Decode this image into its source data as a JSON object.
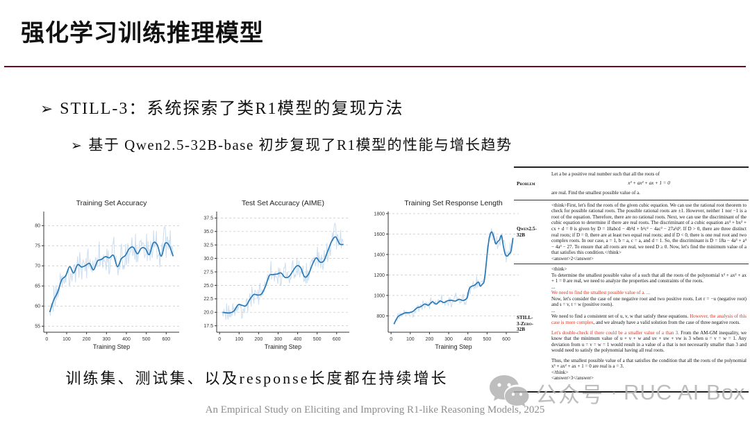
{
  "slide": {
    "title": "强化学习训练推理模型",
    "accent_color": "#b00d3e",
    "bullet_glyph": "➢",
    "bullet1": "STILL-3：系统探索了类R1模型的复现方法",
    "bullet2": "基于 Qwen2.5-32B-base 初步复现了R1模型的性能与增长趋势",
    "caption": "训练集、测试集、以及response长度都在持续增长",
    "footer": "An Empirical Study on Eliciting and Improving R1-like Reasoning Models, 2025"
  },
  "watermark": {
    "icon": "wechat-icon",
    "text1": "公众号",
    "separator": "·",
    "text2": "RUC AI Box",
    "color": "#b3b3b3"
  },
  "chart_data": [
    {
      "type": "line",
      "title": "Training Set Accuracy",
      "xlabel": "Training Step",
      "xlim": [
        -15,
        665
      ],
      "ylim": [
        53.5,
        83.5
      ],
      "xticks": [
        0,
        100,
        200,
        300,
        400,
        500,
        600
      ],
      "yticks": [
        55,
        60,
        65,
        70,
        75,
        80
      ],
      "ytick_labels": [
        "55",
        "60",
        "65",
        "70",
        "75",
        "80"
      ],
      "grid": "horizontal-dashed",
      "line_color": "#2878b5",
      "band_color": "#aecbe9",
      "margin_left": 31,
      "x": [
        15,
        35,
        55,
        75,
        95,
        115,
        135,
        155,
        175,
        195,
        215,
        235,
        255,
        275,
        295,
        315,
        335,
        355,
        375,
        395,
        415,
        435,
        455,
        475,
        495,
        515,
        535,
        555,
        575,
        595,
        615,
        635
      ],
      "y": [
        58.5,
        61.5,
        63.5,
        66.5,
        67.5,
        69.8,
        68.2,
        70.3,
        69.7,
        70.1,
        70.6,
        69.0,
        71.2,
        71.6,
        72.3,
        72.0,
        72.6,
        69.8,
        71.8,
        72.6,
        74.3,
        74.6,
        73.0,
        74.4,
        74.3,
        72.8,
        75.7,
        75.2,
        72.4,
        75.6,
        75.0,
        72.4
      ],
      "noise_amp": 3.6,
      "noise_growth": 0.2
    },
    {
      "type": "line",
      "title": "Test Set Accuracy (AIME)",
      "xlabel": "Training Step",
      "xlim": [
        -15,
        665
      ],
      "ylim": [
        16.3,
        38.7
      ],
      "xticks": [
        0,
        100,
        200,
        300,
        400,
        500,
        600
      ],
      "yticks": [
        17.5,
        20.0,
        22.5,
        25.0,
        27.5,
        30.0,
        32.5,
        35.0,
        37.5
      ],
      "ytick_labels": [
        "17.5",
        "20.0",
        "22.5",
        "25.0",
        "27.5",
        "30.0",
        "32.5",
        "35.0",
        "37.5"
      ],
      "grid": "horizontal-dashed",
      "line_color": "#2878b5",
      "band_color": "#aecbe9",
      "margin_left": 35,
      "x": [
        15,
        35,
        55,
        75,
        95,
        115,
        135,
        155,
        175,
        195,
        215,
        235,
        255,
        275,
        295,
        315,
        335,
        355,
        375,
        395,
        415,
        435,
        455,
        475,
        495,
        515,
        535,
        555,
        575,
        595,
        615,
        635
      ],
      "y": [
        20.0,
        19.9,
        19.9,
        20.3,
        21.4,
        21.3,
        21.2,
        22.4,
        23.3,
        23.2,
        23.4,
        24.8,
        26.8,
        27.0,
        27.1,
        27.3,
        26.5,
        26.6,
        27.6,
        28.6,
        28.3,
        26.6,
        27.0,
        28.8,
        30.1,
        29.3,
        29.6,
        31.4,
        33.2,
        34.0,
        32.7,
        32.6
      ],
      "noise_amp": 1.9,
      "noise_growth": 0.3
    },
    {
      "type": "line",
      "title": "Training Set Response Length",
      "xlabel": "Training Step",
      "xlim": [
        -15,
        665
      ],
      "ylim": [
        640,
        1820
      ],
      "xticks": [
        0,
        100,
        200,
        300,
        400,
        500,
        600
      ],
      "yticks": [
        800,
        1000,
        1200,
        1400,
        1600,
        1800
      ],
      "ytick_labels": [
        "800",
        "1000",
        "1200",
        "1400",
        "1600",
        "1800"
      ],
      "grid": "horizontal-dashed",
      "line_color": "#2878b5",
      "band_color": "#aecbe9",
      "margin_left": 38,
      "x": [
        15,
        35,
        55,
        75,
        95,
        115,
        135,
        155,
        175,
        195,
        215,
        235,
        255,
        275,
        295,
        315,
        335,
        355,
        375,
        395,
        405,
        415,
        435,
        455,
        465,
        475,
        485,
        495,
        505,
        515,
        525,
        535,
        545,
        555,
        565,
        575,
        585,
        595,
        605,
        615,
        625,
        635
      ],
      "y": [
        720,
        790,
        815,
        830,
        832,
        845,
        878,
        890,
        915,
        905,
        938,
        915,
        945,
        930,
        948,
        952,
        945,
        962,
        950,
        975,
        1050,
        1085,
        1100,
        1130,
        1090,
        1110,
        1140,
        1300,
        1480,
        1590,
        1620,
        1570,
        1505,
        1525,
        1545,
        1585,
        1480,
        1400,
        1385,
        1405,
        1435,
        1560
      ],
      "noise_amp": 38,
      "noise_growth": 1.3
    }
  ],
  "table": {
    "rows": [
      {
        "row_class": "row-problem",
        "label_lines": [
          "Problem"
        ],
        "paragraphs": [
          {
            "runs": [
              {
                "t": "Let a be a positive real number such that all the roots of"
              }
            ]
          },
          {
            "center": true,
            "italic": true,
            "runs": [
              {
                "t": "x³ + ax² + ax + 1 = 0"
              }
            ]
          },
          {
            "runs": [
              {
                "t": "are real. Find the smallest possible value of a."
              }
            ]
          }
        ]
      },
      {
        "row_class": "row-qwen",
        "label_lines": [
          "Qwen2.5-",
          "32B"
        ],
        "paragraphs": [
          {
            "runs": [
              {
                "t": "<think>First, let's find the roots of the given cubic equation. We can use the rational root theorem to check for possible rational roots. The possible rational roots are ±1. However, neither 1 nor −1 is a root of the equation. Therefore, there are no rational roots. Next, we can use the discriminant of the cubic equation to determine if there are real roots. The discriminant of a cubic equation ax³ + bx² + cx + d = 0 is given by D = 18abcd − 4b³d + b²c² − 4ac³ − 27a²d². If D > 0, there are three distinct real roots; if D = 0, there are at least two equal real roots; and if D < 0, there is one real root and two complex roots. In our case, a = 1, b = a, c = a, and d = 1. So, the discriminant is D = 18a − 4a³ + a⁴ − 4a³ − 27. To ensure that all roots are real, we need D ≥ 0. Now, let's find the minimum value of a that satisfies this condition.</think>"
              }
            ]
          },
          {
            "runs": [
              {
                "t": "<answer>2</answer>"
              }
            ]
          }
        ]
      },
      {
        "row_class": "row-still",
        "label_lines": [
          "STILL-",
          "3-Zero-",
          "32B"
        ],
        "paragraphs": [
          {
            "runs": [
              {
                "t": "<think>"
              }
            ]
          },
          {
            "runs": [
              {
                "t": "To determine the smallest possible value of a such that all the roots of the polynomial x³ + ax² + ax + 1 = 0 are real, we need to analyze the properties and constraints of the roots."
              }
            ]
          },
          {
            "runs": [
              {
                "t": "..."
              }
            ]
          },
          {
            "runs": [
              {
                "t": "We need to find the smallest possible value of a. ...",
                "red": true
              }
            ]
          },
          {
            "runs": [
              {
                "t": "Now, let's consider the case of one negative root and two positive roots. Let r = −u (negative root) and s = v, t = w (positive roots)."
              }
            ]
          },
          {
            "runs": [
              {
                "t": "..."
              }
            ]
          },
          {
            "runs": [
              {
                "t": "We need to find a consistent set of u, v, w that satisfy these equations. "
              },
              {
                "t": "However, the analysis of this case is more complex",
                "red": true
              },
              {
                "t": ", and we already have a valid solution from the case of three negative roots."
              }
            ]
          },
          {
            "gap": true,
            "runs": [
              {
                "t": "Let's double-check if there could be a smaller value of a than 3.",
                "red": true
              },
              {
                "t": "  From the AM-GM inequality, we know that the minimum value of u + v + w and uv + uw + vw is 3 when u = v = w = 1. Any deviation from u = v = w = 1 would result in a value of a that is not necessarily smaller than 3 and would need to satisfy the polynomial having all real roots."
              }
            ]
          },
          {
            "gap": true,
            "runs": [
              {
                "t": "Thus, the smallest possible value of a that satisfies the condition that all the roots of the polynomial x³ + ax² + ax + 1 = 0 are real is a = 3."
              }
            ]
          },
          {
            "runs": [
              {
                "t": "</think>"
              }
            ]
          },
          {
            "runs": [
              {
                "t": "<answer>3</answer>"
              }
            ]
          }
        ]
      }
    ]
  }
}
